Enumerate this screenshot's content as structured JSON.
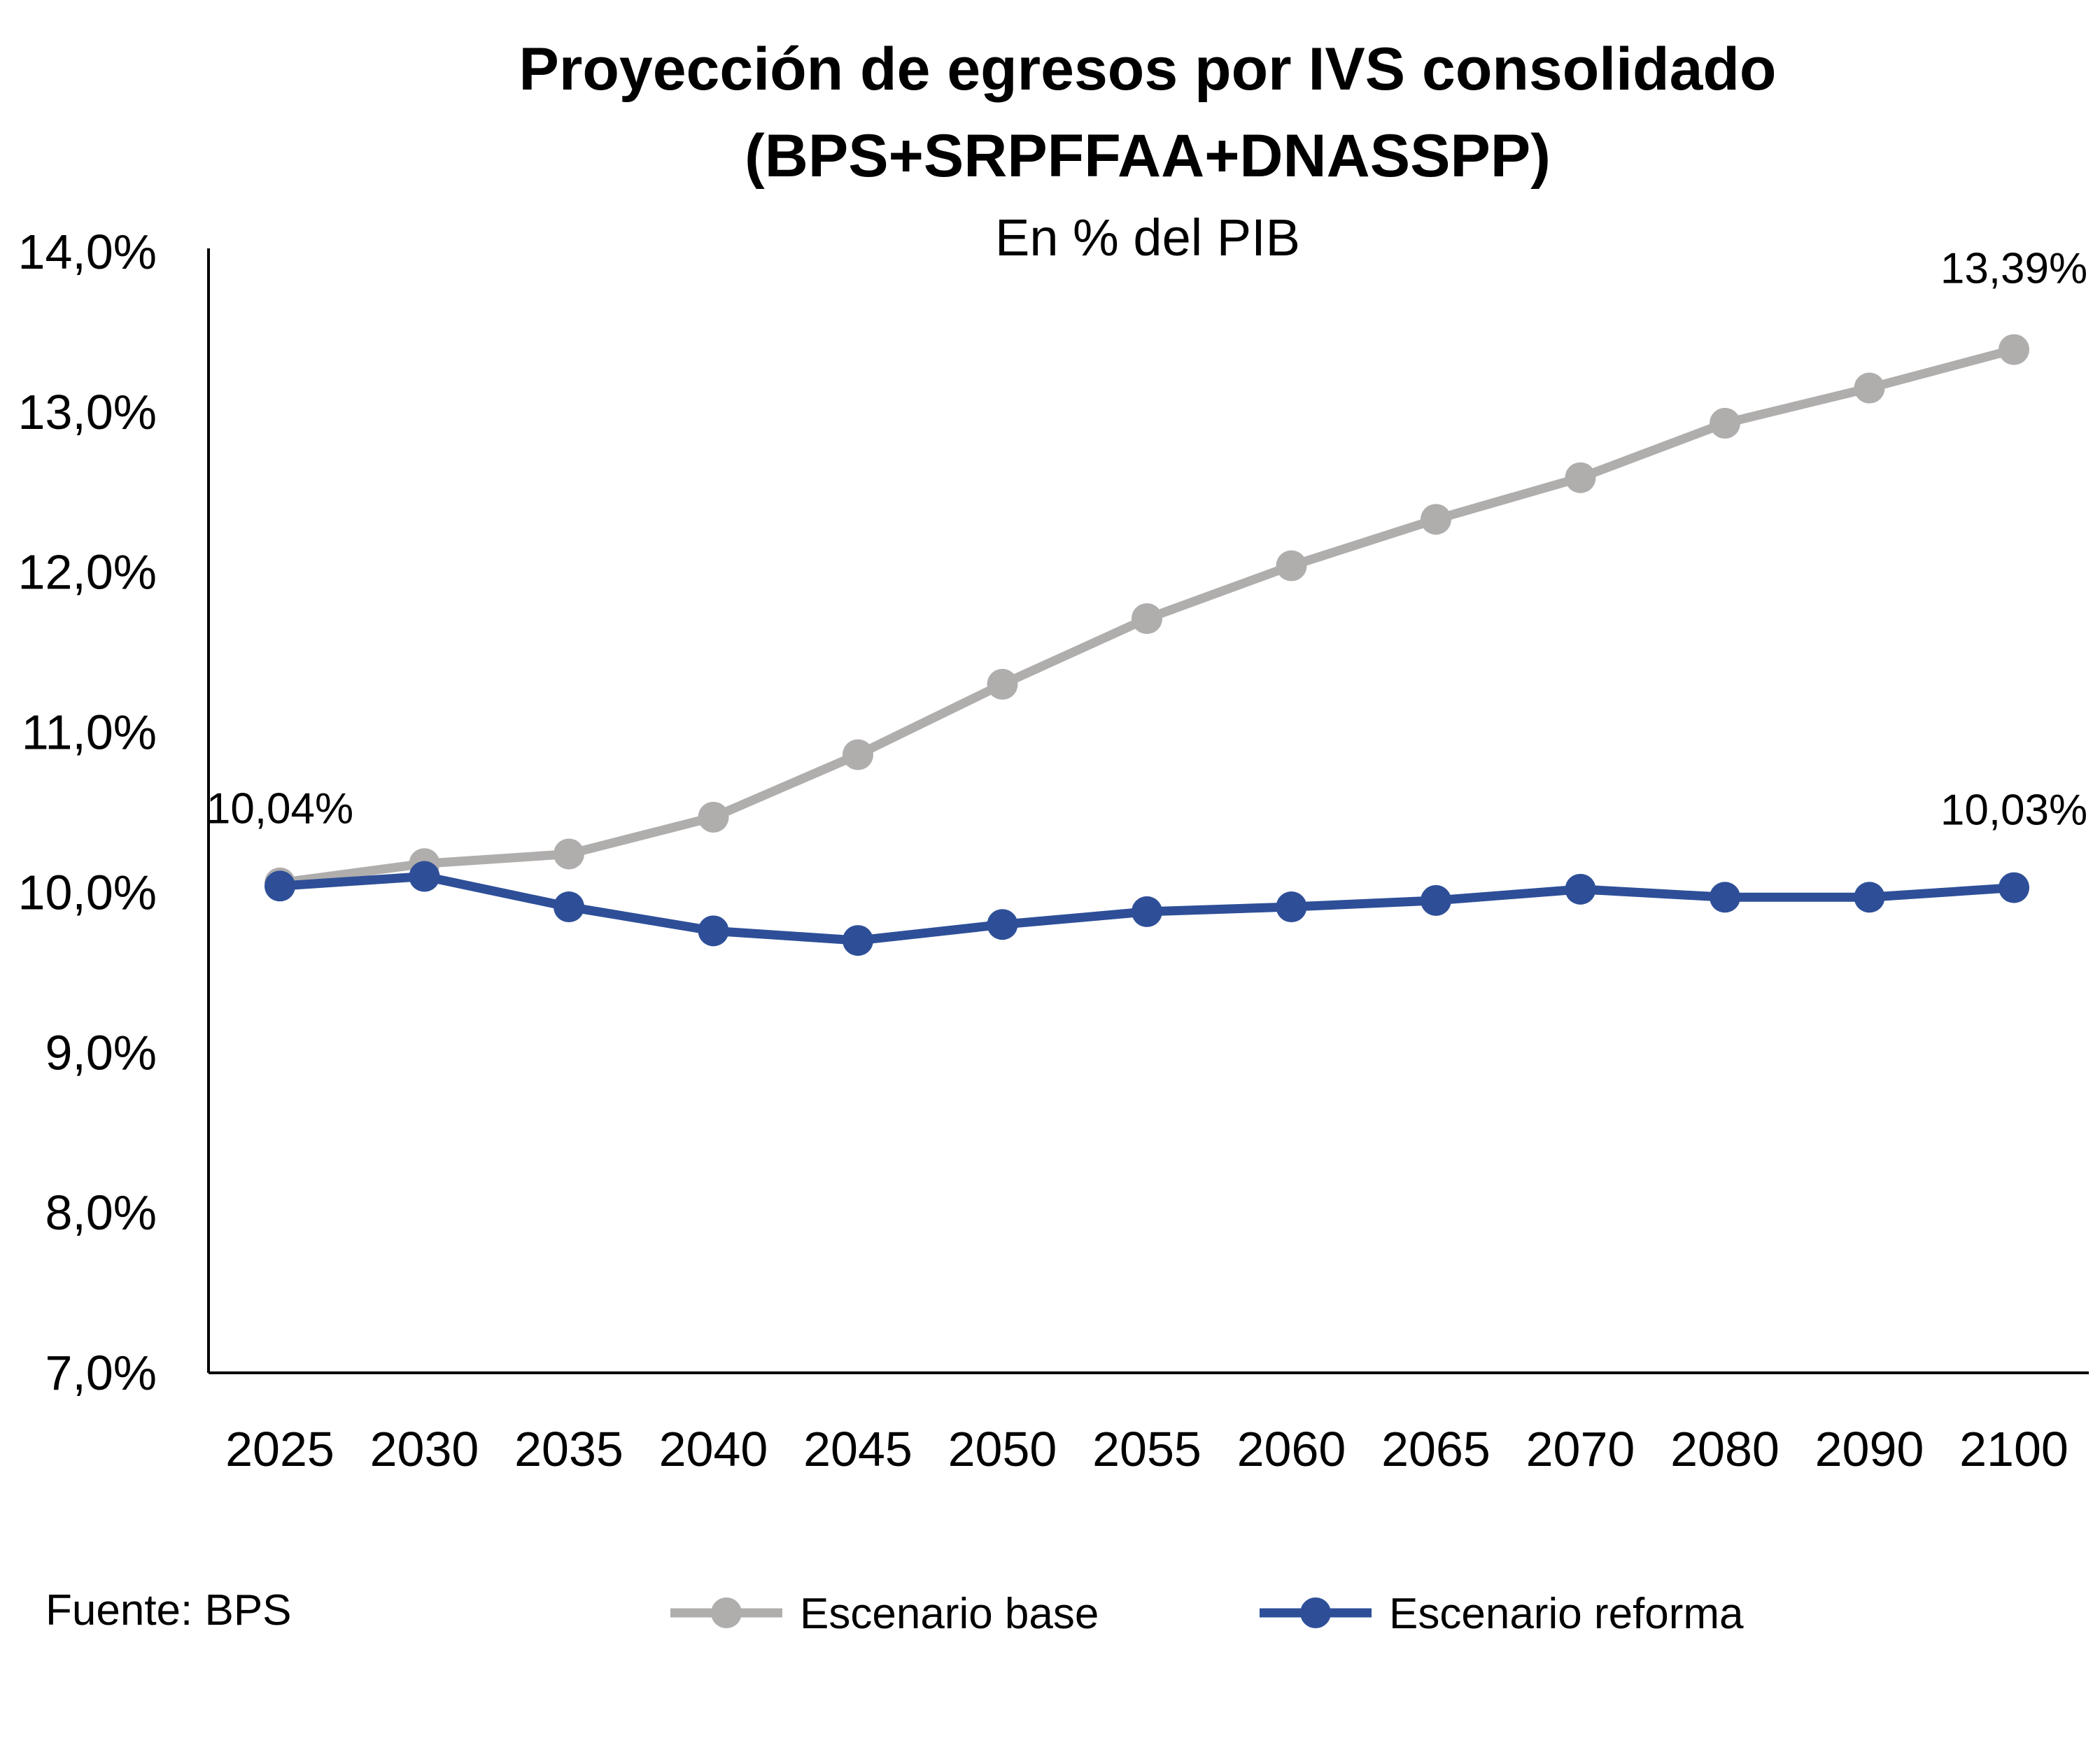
{
  "chart_data": {
    "type": "line",
    "title": "Proyección de egresos por IVS consolidado",
    "title_line2": "(BPS+SRPFFAA+DNASSPP)",
    "subtitle": "En % del PIB",
    "xlabel": "",
    "ylabel": "",
    "categories": [
      "2025",
      "2030",
      "2035",
      "2040",
      "2045",
      "2050",
      "2055",
      "2060",
      "2065",
      "2070",
      "2080",
      "2090",
      "2100"
    ],
    "ylim": [
      0.07,
      0.14
    ],
    "yticks": [
      {
        "value": 0.07,
        "label": "7,0%"
      },
      {
        "value": 0.08,
        "label": "8,0%"
      },
      {
        "value": 0.09,
        "label": "9,0%"
      },
      {
        "value": 0.1,
        "label": "10,0%"
      },
      {
        "value": 0.11,
        "label": "11,0%"
      },
      {
        "value": 0.12,
        "label": "12,0%"
      },
      {
        "value": 0.13,
        "label": "13,0%"
      },
      {
        "value": 0.14,
        "label": "14,0%"
      }
    ],
    "grid": false,
    "legend_position": "bottom",
    "series": [
      {
        "name": "Escenario base",
        "color": "#b0adad",
        "values": [
          0.1006,
          0.1018,
          0.1024,
          0.1047,
          0.1086,
          0.113,
          0.1171,
          0.1204,
          0.1233,
          0.1259,
          0.1293,
          0.1315,
          0.1339
        ],
        "data_labels": [
          {
            "index": 12,
            "text": "13,39%",
            "placement": "above"
          }
        ]
      },
      {
        "name": "Escenario reforma",
        "color": "#2e4f98",
        "values": [
          0.1004,
          0.101,
          0.0991,
          0.0976,
          0.097,
          0.098,
          0.0988,
          0.0991,
          0.0995,
          0.1002,
          0.0997,
          0.0997,
          0.1003
        ],
        "data_labels": [
          {
            "index": 0,
            "text": "10,04%",
            "placement": "above"
          },
          {
            "index": 12,
            "text": "10,03%",
            "placement": "above"
          }
        ]
      }
    ]
  },
  "source_note": "Fuente: BPS"
}
